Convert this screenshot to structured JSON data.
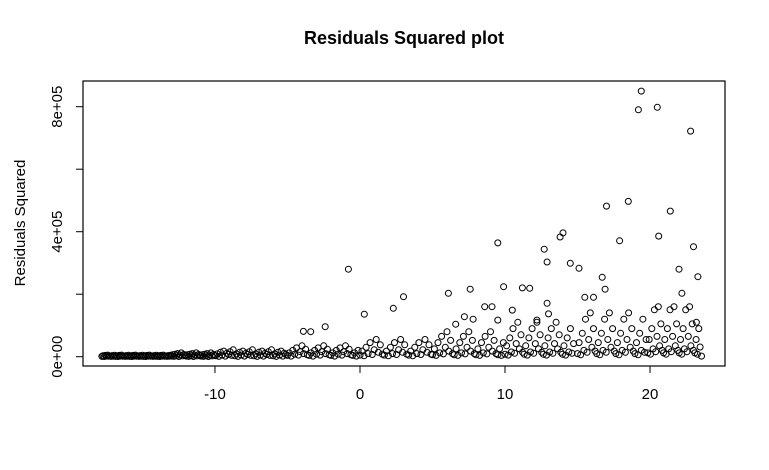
{
  "figure": {
    "background": "#ffffff"
  },
  "chart_data": {
    "type": "scatter",
    "title": "Residuals Squared plot",
    "xlabel": "",
    "ylabel": "Residuals Squared",
    "x_ticks": [
      -10,
      0,
      10,
      20
    ],
    "x_tick_labels": [
      "-10",
      "0",
      "10",
      "20"
    ],
    "y_ticks": [
      0,
      200000,
      400000,
      600000,
      800000
    ],
    "y_tick_labels": [
      "0e+00",
      "",
      "4e+05",
      "",
      "8e+05"
    ],
    "xlim": [
      -19.1,
      25.17
    ],
    "ylim": [
      -29760,
      882240
    ],
    "grid": false,
    "legend_position": "none",
    "marker": "open-circle",
    "point_color": "#000000",
    "y_scale": 1000,
    "points": [
      [
        19.4,
        850
      ],
      [
        20.5,
        798
      ],
      [
        19.2,
        790
      ],
      [
        22.8,
        722
      ],
      [
        18.5,
        497
      ],
      [
        17.0,
        482
      ],
      [
        21.4,
        466
      ],
      [
        14.0,
        396
      ],
      [
        20.6,
        386
      ],
      [
        13.8,
        383
      ],
      [
        17.9,
        371
      ],
      [
        9.5,
        364
      ],
      [
        23.0,
        352
      ],
      [
        12.7,
        344
      ],
      [
        12.9,
        303
      ],
      [
        14.5,
        299
      ],
      [
        15.1,
        283
      ],
      [
        22.0,
        280
      ],
      [
        -0.8,
        280
      ],
      [
        23.3,
        256
      ],
      [
        16.7,
        254
      ],
      [
        9.9,
        224
      ],
      [
        11.2,
        220
      ],
      [
        11.7,
        219
      ],
      [
        16.9,
        216
      ],
      [
        7.6,
        216
      ],
      [
        6.1,
        203
      ],
      [
        22.2,
        203
      ],
      [
        3.0,
        192
      ],
      [
        15.5,
        190
      ],
      [
        16.1,
        190
      ],
      [
        12.9,
        171
      ],
      [
        8.6,
        160
      ],
      [
        9.1,
        160
      ],
      [
        2.3,
        155
      ],
      [
        10.5,
        149
      ],
      [
        13.0,
        137
      ],
      [
        0.3,
        136
      ],
      [
        7.2,
        128
      ],
      [
        7.8,
        120
      ],
      [
        9.5,
        117
      ],
      [
        12.2,
        117
      ],
      [
        6.6,
        104
      ],
      [
        23.2,
        110
      ],
      [
        -2.4,
        96
      ],
      [
        -3.9,
        81
      ],
      [
        -3.4,
        80
      ],
      [
        -17.8,
        1
      ],
      [
        -17.72,
        3
      ],
      [
        -17.64,
        0.5
      ],
      [
        -17.56,
        4
      ],
      [
        -17.48,
        2
      ],
      [
        -17.4,
        5
      ],
      [
        -17.32,
        1.5
      ],
      [
        -17.24,
        2.5
      ],
      [
        -17.16,
        0.8
      ],
      [
        -17.08,
        3.5
      ],
      [
        -17.0,
        1.2
      ],
      [
        -16.92,
        4.5
      ],
      [
        -16.84,
        1
      ],
      [
        -16.76,
        3
      ],
      [
        -16.68,
        0.5
      ],
      [
        -16.6,
        4
      ],
      [
        -16.52,
        2
      ],
      [
        -16.44,
        5
      ],
      [
        -16.36,
        1.5
      ],
      [
        -16.28,
        2.5
      ],
      [
        -16.2,
        0.8
      ],
      [
        -16.12,
        3.5
      ],
      [
        -16.04,
        1.2
      ],
      [
        -15.96,
        4.5
      ],
      [
        -15.88,
        1
      ],
      [
        -15.8,
        3
      ],
      [
        -15.72,
        0.5
      ],
      [
        -15.64,
        4
      ],
      [
        -15.56,
        2
      ],
      [
        -15.48,
        5
      ],
      [
        -15.4,
        1.5
      ],
      [
        -15.32,
        2.5
      ],
      [
        -15.24,
        0.8
      ],
      [
        -15.16,
        3.5
      ],
      [
        -15.08,
        1.2
      ],
      [
        -15.0,
        4.5
      ],
      [
        -14.92,
        1
      ],
      [
        -14.84,
        3
      ],
      [
        -14.76,
        0.5
      ],
      [
        -14.68,
        4
      ],
      [
        -14.6,
        2
      ],
      [
        -14.52,
        5
      ],
      [
        -14.44,
        1.5
      ],
      [
        -14.36,
        2.5
      ],
      [
        -14.28,
        0.8
      ],
      [
        -14.2,
        3.5
      ],
      [
        -14.12,
        1.2
      ],
      [
        -14.04,
        4.5
      ],
      [
        -13.96,
        1
      ],
      [
        -13.88,
        3
      ],
      [
        -13.8,
        0.5
      ],
      [
        -13.72,
        4
      ],
      [
        -13.64,
        2
      ],
      [
        -13.56,
        5
      ],
      [
        -13.48,
        1.5
      ],
      [
        -13.4,
        2.5
      ],
      [
        -13.32,
        0.8
      ],
      [
        -13.24,
        3.5
      ],
      [
        -13.16,
        1.2
      ],
      [
        -13.08,
        4.5
      ],
      [
        -13.0,
        2
      ],
      [
        -12.92,
        6
      ],
      [
        -12.83,
        1
      ],
      [
        -12.75,
        8
      ],
      [
        -12.66,
        3
      ],
      [
        -12.58,
        10
      ],
      [
        -12.49,
        0.7
      ],
      [
        -12.41,
        5
      ],
      [
        -12.32,
        12
      ],
      [
        -12.24,
        2.5
      ],
      [
        -12.15,
        7
      ],
      [
        -12.07,
        4
      ],
      [
        -11.98,
        2
      ],
      [
        -11.9,
        6
      ],
      [
        -11.81,
        1
      ],
      [
        -11.73,
        8
      ],
      [
        -11.64,
        3
      ],
      [
        -11.56,
        10
      ],
      [
        -11.47,
        0.7
      ],
      [
        -11.39,
        5
      ],
      [
        -11.3,
        12
      ],
      [
        -11.22,
        2.5
      ],
      [
        -11.13,
        7
      ],
      [
        -11.05,
        4
      ],
      [
        -10.96,
        2
      ],
      [
        -10.88,
        6
      ],
      [
        -10.79,
        1
      ],
      [
        -10.71,
        8
      ],
      [
        -10.62,
        3
      ],
      [
        -10.54,
        10
      ],
      [
        -10.45,
        0.7
      ],
      [
        -10.37,
        5
      ],
      [
        -10.28,
        12
      ],
      [
        -10.2,
        2.5
      ],
      [
        -10.11,
        7
      ],
      [
        -10.03,
        4
      ],
      [
        -9.95,
        3
      ],
      [
        -9.84,
        9
      ],
      [
        -9.73,
        1
      ],
      [
        -9.62,
        14
      ],
      [
        -9.51,
        5
      ],
      [
        -9.4,
        18
      ],
      [
        -9.29,
        2
      ],
      [
        -9.18,
        11
      ],
      [
        -9.07,
        7
      ],
      [
        -8.96,
        16
      ],
      [
        -8.85,
        4
      ],
      [
        -8.74,
        22
      ],
      [
        -8.63,
        3
      ],
      [
        -8.52,
        9
      ],
      [
        -8.41,
        1
      ],
      [
        -8.3,
        14
      ],
      [
        -8.19,
        5
      ],
      [
        -8.08,
        18
      ],
      [
        -7.97,
        2
      ],
      [
        -7.86,
        11
      ],
      [
        -7.75,
        7
      ],
      [
        -7.64,
        16
      ],
      [
        -7.53,
        4
      ],
      [
        -7.42,
        22
      ],
      [
        -7.31,
        3
      ],
      [
        -7.2,
        9
      ],
      [
        -7.09,
        1
      ],
      [
        -6.98,
        14
      ],
      [
        -6.87,
        5
      ],
      [
        -6.76,
        18
      ],
      [
        -6.65,
        2
      ],
      [
        -6.54,
        11
      ],
      [
        -6.43,
        7
      ],
      [
        -6.32,
        16
      ],
      [
        -6.21,
        4
      ],
      [
        -6.1,
        22
      ],
      [
        -5.99,
        3
      ],
      [
        -5.88,
        9
      ],
      [
        -5.77,
        1
      ],
      [
        -5.66,
        14
      ],
      [
        -5.55,
        5
      ],
      [
        -5.44,
        18
      ],
      [
        -5.33,
        2
      ],
      [
        -5.22,
        11
      ],
      [
        -5.11,
        7
      ],
      [
        -5.0,
        4
      ],
      [
        -4.88,
        12
      ],
      [
        -4.75,
        2
      ],
      [
        -4.63,
        20
      ],
      [
        -4.5,
        8
      ],
      [
        -4.38,
        28
      ],
      [
        -4.25,
        5
      ],
      [
        -4.13,
        16
      ],
      [
        -4.0,
        35
      ],
      [
        -3.88,
        10
      ],
      [
        -3.75,
        24
      ],
      [
        -3.63,
        6
      ],
      [
        -3.5,
        4
      ],
      [
        -3.38,
        12
      ],
      [
        -3.25,
        2
      ],
      [
        -3.13,
        20
      ],
      [
        -3.0,
        8
      ],
      [
        -2.88,
        28
      ],
      [
        -2.75,
        5
      ],
      [
        -2.63,
        16
      ],
      [
        -2.5,
        35
      ],
      [
        -2.38,
        10
      ],
      [
        -2.25,
        24
      ],
      [
        -2.13,
        6
      ],
      [
        -2.0,
        4
      ],
      [
        -1.88,
        12
      ],
      [
        -1.75,
        2
      ],
      [
        -1.63,
        20
      ],
      [
        -1.5,
        8
      ],
      [
        -1.38,
        28
      ],
      [
        -1.25,
        5
      ],
      [
        -1.13,
        16
      ],
      [
        -1.0,
        35
      ],
      [
        -0.88,
        10
      ],
      [
        -0.75,
        24
      ],
      [
        -0.63,
        6
      ],
      [
        -0.5,
        4
      ],
      [
        -0.38,
        12
      ],
      [
        -0.25,
        2
      ],
      [
        -0.13,
        20
      ],
      [
        0.0,
        5
      ],
      [
        0.14,
        18
      ],
      [
        0.28,
        3
      ],
      [
        0.42,
        30
      ],
      [
        0.56,
        10
      ],
      [
        0.7,
        45
      ],
      [
        0.84,
        7
      ],
      [
        0.98,
        22
      ],
      [
        1.12,
        55
      ],
      [
        1.26,
        14
      ],
      [
        1.4,
        38
      ],
      [
        1.54,
        8
      ],
      [
        1.68,
        5
      ],
      [
        1.82,
        18
      ],
      [
        1.96,
        3
      ],
      [
        2.1,
        30
      ],
      [
        2.24,
        10
      ],
      [
        2.38,
        45
      ],
      [
        2.52,
        7
      ],
      [
        2.66,
        22
      ],
      [
        2.8,
        55
      ],
      [
        2.94,
        14
      ],
      [
        3.08,
        38
      ],
      [
        3.22,
        8
      ],
      [
        3.36,
        5
      ],
      [
        3.5,
        18
      ],
      [
        3.64,
        3
      ],
      [
        3.78,
        30
      ],
      [
        3.92,
        10
      ],
      [
        4.06,
        45
      ],
      [
        4.2,
        7
      ],
      [
        4.34,
        22
      ],
      [
        4.48,
        55
      ],
      [
        4.62,
        14
      ],
      [
        4.76,
        38
      ],
      [
        4.9,
        8
      ],
      [
        5.0,
        6
      ],
      [
        5.13,
        25
      ],
      [
        5.25,
        4
      ],
      [
        5.38,
        45
      ],
      [
        5.5,
        12
      ],
      [
        5.63,
        65
      ],
      [
        5.75,
        9
      ],
      [
        5.88,
        30
      ],
      [
        6.0,
        80
      ],
      [
        6.13,
        18
      ],
      [
        6.25,
        52
      ],
      [
        6.38,
        10
      ],
      [
        6.5,
        6
      ],
      [
        6.63,
        25
      ],
      [
        6.75,
        4
      ],
      [
        6.88,
        45
      ],
      [
        7.0,
        12
      ],
      [
        7.13,
        65
      ],
      [
        7.25,
        9
      ],
      [
        7.38,
        30
      ],
      [
        7.5,
        80
      ],
      [
        7.63,
        18
      ],
      [
        7.75,
        52
      ],
      [
        7.88,
        10
      ],
      [
        8.0,
        6
      ],
      [
        8.13,
        25
      ],
      [
        8.25,
        4
      ],
      [
        8.38,
        45
      ],
      [
        8.5,
        12
      ],
      [
        8.63,
        65
      ],
      [
        8.75,
        9
      ],
      [
        8.88,
        30
      ],
      [
        9.0,
        80
      ],
      [
        9.13,
        18
      ],
      [
        9.25,
        52
      ],
      [
        9.38,
        10
      ],
      [
        9.5,
        6
      ],
      [
        9.63,
        25
      ],
      [
        9.75,
        4
      ],
      [
        9.88,
        45
      ],
      [
        10.0,
        8
      ],
      [
        10.11,
        35
      ],
      [
        10.22,
        5
      ],
      [
        10.33,
        60
      ],
      [
        10.44,
        15
      ],
      [
        10.55,
        90
      ],
      [
        10.66,
        11
      ],
      [
        10.77,
        42
      ],
      [
        10.88,
        110
      ],
      [
        10.99,
        25
      ],
      [
        11.1,
        70
      ],
      [
        11.21,
        14
      ],
      [
        11.32,
        8
      ],
      [
        11.43,
        35
      ],
      [
        11.54,
        5
      ],
      [
        11.65,
        60
      ],
      [
        11.76,
        15
      ],
      [
        11.87,
        90
      ],
      [
        11.98,
        11
      ],
      [
        12.09,
        42
      ],
      [
        12.2,
        110
      ],
      [
        12.31,
        25
      ],
      [
        12.42,
        70
      ],
      [
        12.53,
        14
      ],
      [
        12.64,
        8
      ],
      [
        12.75,
        35
      ],
      [
        12.86,
        5
      ],
      [
        12.97,
        60
      ],
      [
        13.08,
        15
      ],
      [
        13.19,
        90
      ],
      [
        13.3,
        11
      ],
      [
        13.41,
        42
      ],
      [
        13.52,
        110
      ],
      [
        13.63,
        25
      ],
      [
        13.74,
        70
      ],
      [
        13.85,
        14
      ],
      [
        13.96,
        8
      ],
      [
        14.07,
        35
      ],
      [
        14.18,
        5
      ],
      [
        14.29,
        60
      ],
      [
        14.4,
        15
      ],
      [
        14.51,
        90
      ],
      [
        14.62,
        11
      ],
      [
        14.73,
        42
      ],
      [
        15.0,
        10
      ],
      [
        15.11,
        45
      ],
      [
        15.22,
        6
      ],
      [
        15.33,
        75
      ],
      [
        15.44,
        20
      ],
      [
        15.55,
        120
      ],
      [
        15.66,
        14
      ],
      [
        15.77,
        55
      ],
      [
        15.88,
        140
      ],
      [
        15.99,
        30
      ],
      [
        16.1,
        90
      ],
      [
        16.21,
        18
      ],
      [
        16.32,
        10
      ],
      [
        16.43,
        45
      ],
      [
        16.54,
        6
      ],
      [
        16.65,
        75
      ],
      [
        16.76,
        20
      ],
      [
        16.87,
        120
      ],
      [
        16.98,
        14
      ],
      [
        17.09,
        55
      ],
      [
        17.2,
        140
      ],
      [
        17.31,
        30
      ],
      [
        17.42,
        90
      ],
      [
        17.53,
        18
      ],
      [
        17.64,
        10
      ],
      [
        17.75,
        45
      ],
      [
        17.86,
        6
      ],
      [
        17.97,
        75
      ],
      [
        18.08,
        20
      ],
      [
        18.19,
        120
      ],
      [
        18.3,
        14
      ],
      [
        18.41,
        55
      ],
      [
        18.52,
        140
      ],
      [
        18.63,
        30
      ],
      [
        18.74,
        90
      ],
      [
        18.85,
        18
      ],
      [
        18.96,
        10
      ],
      [
        19.07,
        45
      ],
      [
        19.18,
        6
      ],
      [
        19.29,
        75
      ],
      [
        19.4,
        20
      ],
      [
        19.51,
        120
      ],
      [
        19.62,
        14
      ],
      [
        19.73,
        55
      ],
      [
        19.85,
        12
      ],
      [
        19.94,
        55
      ],
      [
        20.03,
        8
      ],
      [
        20.12,
        90
      ],
      [
        20.21,
        25
      ],
      [
        20.3,
        150
      ],
      [
        20.39,
        16
      ],
      [
        20.48,
        65
      ],
      [
        20.57,
        160
      ],
      [
        20.66,
        35
      ],
      [
        20.75,
        105
      ],
      [
        20.84,
        20
      ],
      [
        20.93,
        12
      ],
      [
        21.02,
        55
      ],
      [
        21.11,
        8
      ],
      [
        21.2,
        90
      ],
      [
        21.29,
        25
      ],
      [
        21.38,
        150
      ],
      [
        21.47,
        16
      ],
      [
        21.56,
        65
      ],
      [
        21.65,
        160
      ],
      [
        21.74,
        35
      ],
      [
        21.83,
        105
      ],
      [
        21.92,
        20
      ],
      [
        22.01,
        12
      ],
      [
        22.1,
        55
      ],
      [
        22.19,
        8
      ],
      [
        22.28,
        90
      ],
      [
        22.37,
        25
      ],
      [
        22.46,
        150
      ],
      [
        22.55,
        16
      ],
      [
        22.64,
        65
      ],
      [
        22.73,
        160
      ],
      [
        22.82,
        35
      ],
      [
        22.91,
        105
      ],
      [
        23.0,
        20
      ],
      [
        23.09,
        12
      ],
      [
        23.18,
        55
      ],
      [
        23.27,
        8
      ],
      [
        23.36,
        90
      ],
      [
        23.45,
        31
      ],
      [
        23.55,
        2
      ]
    ]
  }
}
